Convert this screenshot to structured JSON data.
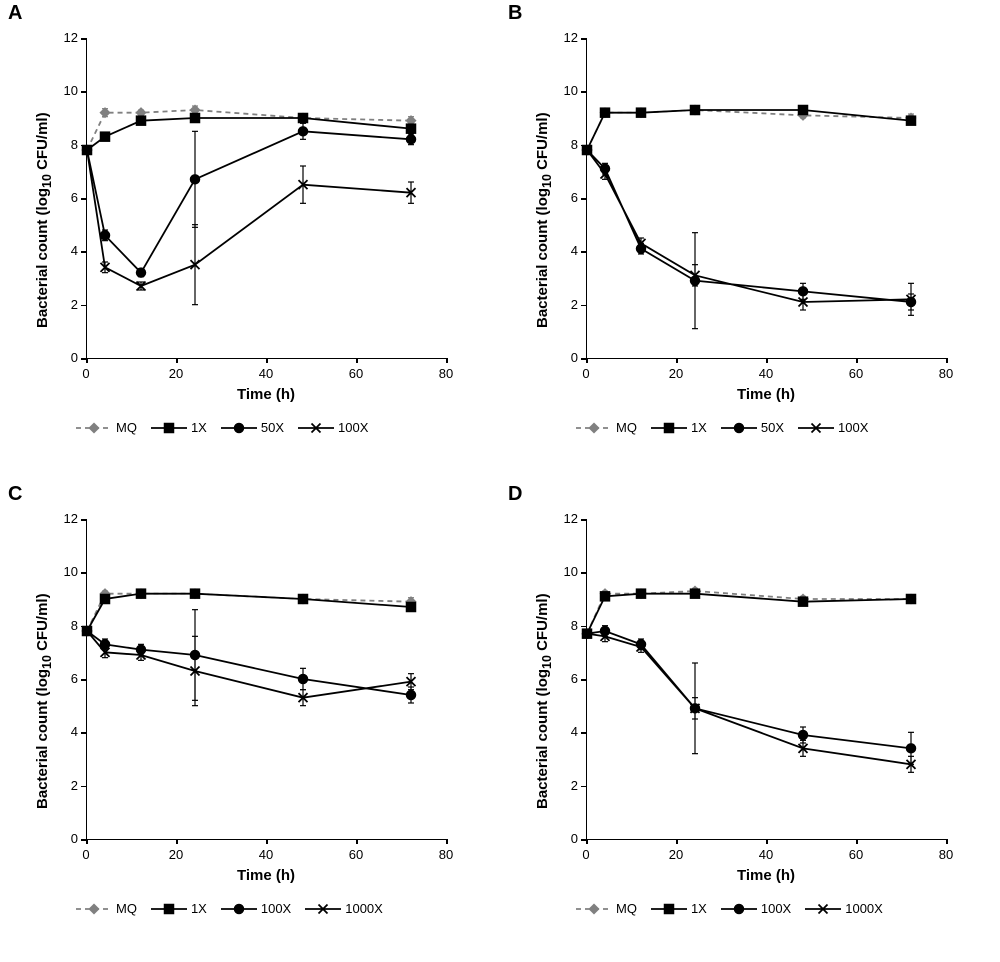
{
  "figure": {
    "background_color": "#ffffff",
    "font_family": "Arial, Helvetica, sans-serif",
    "panel_label_fontsize": 20,
    "axis_label_fontsize": 15,
    "tick_fontsize": 13,
    "legend_fontsize": 13,
    "line_width": 1.8,
    "marker_size": 6,
    "axis_color": "#000000",
    "colors": {
      "MQ": "#808080",
      "series": "#000000"
    },
    "grid_color": "#ffffff"
  },
  "panels": [
    {
      "id": "A",
      "label": "A",
      "type": "line",
      "xlabel": "Time (h)",
      "ylabel": "Bacterial count (log₁₀ CFU/ml)",
      "ylabel_plain": "Bacterial count (log10 CFU/ml)",
      "xlim": [
        0,
        80
      ],
      "ylim": [
        0,
        12
      ],
      "xticks": [
        0,
        20,
        40,
        60,
        80
      ],
      "yticks": [
        0,
        2,
        4,
        6,
        8,
        10,
        12
      ],
      "legend_items": [
        "MQ",
        "1X",
        "50X",
        "100X"
      ],
      "series": [
        {
          "name": "MQ",
          "marker": "diamond",
          "dash": "5,4",
          "color": "#808080",
          "x": [
            0,
            4,
            12,
            24,
            48,
            72
          ],
          "y": [
            7.8,
            9.2,
            9.2,
            9.3,
            9.0,
            8.9
          ],
          "err": [
            0.1,
            0.15,
            0.1,
            0.15,
            0.1,
            0.15
          ]
        },
        {
          "name": "1X",
          "marker": "square",
          "dash": "",
          "color": "#000000",
          "x": [
            0,
            4,
            12,
            24,
            48,
            72
          ],
          "y": [
            7.8,
            8.3,
            8.9,
            9.0,
            9.0,
            8.6
          ],
          "err": [
            0.1,
            0.1,
            0.1,
            0.1,
            0.15,
            0.1
          ]
        },
        {
          "name": "50X",
          "marker": "circle",
          "dash": "",
          "color": "#000000",
          "x": [
            0,
            4,
            12,
            24,
            48,
            72
          ],
          "y": [
            7.8,
            4.6,
            3.2,
            6.7,
            8.5,
            8.2
          ],
          "err": [
            0.1,
            0.2,
            0.15,
            1.8,
            0.3,
            0.2
          ]
        },
        {
          "name": "100X",
          "marker": "x",
          "dash": "",
          "color": "#000000",
          "x": [
            0,
            4,
            12,
            24,
            48,
            72
          ],
          "y": [
            7.8,
            3.4,
            2.7,
            3.5,
            6.5,
            6.2
          ],
          "err": [
            0.1,
            0.2,
            0.15,
            1.5,
            0.7,
            0.4
          ]
        }
      ]
    },
    {
      "id": "B",
      "label": "B",
      "type": "line",
      "xlabel": "Time (h)",
      "ylabel": "Bacterial count (log₁₀ CFU/ml)",
      "ylabel_plain": "Bacterial count (log10 CFU/ml)",
      "xlim": [
        0,
        80
      ],
      "ylim": [
        0,
        12
      ],
      "xticks": [
        0,
        20,
        40,
        60,
        80
      ],
      "yticks": [
        0,
        2,
        4,
        6,
        8,
        10,
        12
      ],
      "legend_items": [
        "MQ",
        "1X",
        "50X",
        "100X"
      ],
      "series": [
        {
          "name": "MQ",
          "marker": "diamond",
          "dash": "5,4",
          "color": "#808080",
          "x": [
            0,
            4,
            12,
            24,
            48,
            72
          ],
          "y": [
            7.8,
            9.2,
            9.2,
            9.3,
            9.1,
            9.0
          ],
          "err": [
            0.1,
            0.1,
            0.1,
            0.1,
            0.1,
            0.15
          ]
        },
        {
          "name": "1X",
          "marker": "square",
          "dash": "",
          "color": "#000000",
          "x": [
            0,
            4,
            12,
            24,
            48,
            72
          ],
          "y": [
            7.8,
            9.2,
            9.2,
            9.3,
            9.3,
            8.9
          ],
          "err": [
            0.1,
            0.1,
            0.1,
            0.1,
            0.15,
            0.1
          ]
        },
        {
          "name": "50X",
          "marker": "circle",
          "dash": "",
          "color": "#000000",
          "x": [
            0,
            4,
            12,
            24,
            48,
            72
          ],
          "y": [
            7.8,
            7.1,
            4.1,
            2.9,
            2.5,
            2.1
          ],
          "err": [
            0.1,
            0.2,
            0.2,
            1.8,
            0.3,
            0.3
          ]
        },
        {
          "name": "100X",
          "marker": "x",
          "dash": "",
          "color": "#000000",
          "x": [
            0,
            4,
            12,
            24,
            48,
            72
          ],
          "y": [
            7.8,
            6.9,
            4.3,
            3.1,
            2.1,
            2.2
          ],
          "err": [
            0.1,
            0.2,
            0.2,
            0.4,
            0.3,
            0.6
          ]
        }
      ]
    },
    {
      "id": "C",
      "label": "C",
      "type": "line",
      "xlabel": "Time (h)",
      "ylabel": "Bacterial count (log₁₀ CFU/ml)",
      "ylabel_plain": "Bacterial count (log10 CFU/ml)",
      "xlim": [
        0,
        80
      ],
      "ylim": [
        0,
        12
      ],
      "xticks": [
        0,
        20,
        40,
        60,
        80
      ],
      "yticks": [
        0,
        2,
        4,
        6,
        8,
        10,
        12
      ],
      "legend_items": [
        "MQ",
        "1X",
        "100X",
        "1000X"
      ],
      "series": [
        {
          "name": "MQ",
          "marker": "diamond",
          "dash": "5,4",
          "color": "#808080",
          "x": [
            0,
            4,
            12,
            24,
            48,
            72
          ],
          "y": [
            7.8,
            9.2,
            9.2,
            9.2,
            9.0,
            8.9
          ],
          "err": [
            0.1,
            0.1,
            0.1,
            0.1,
            0.1,
            0.15
          ]
        },
        {
          "name": "1X",
          "marker": "square",
          "dash": "",
          "color": "#000000",
          "x": [
            0,
            4,
            12,
            24,
            48,
            72
          ],
          "y": [
            7.8,
            9.0,
            9.2,
            9.2,
            9.0,
            8.7
          ],
          "err": [
            0.1,
            0.1,
            0.1,
            0.1,
            0.1,
            0.15
          ]
        },
        {
          "name": "100X",
          "marker": "circle",
          "dash": "",
          "color": "#000000",
          "x": [
            0,
            4,
            12,
            24,
            48,
            72
          ],
          "y": [
            7.8,
            7.3,
            7.1,
            6.9,
            6.0,
            5.4
          ],
          "err": [
            0.1,
            0.2,
            0.2,
            1.7,
            0.4,
            0.3
          ]
        },
        {
          "name": "1000X",
          "marker": "x",
          "dash": "",
          "color": "#000000",
          "x": [
            0,
            4,
            12,
            24,
            48,
            72
          ],
          "y": [
            7.8,
            7.0,
            6.9,
            6.3,
            5.3,
            5.9
          ],
          "err": [
            0.1,
            0.2,
            0.2,
            1.3,
            0.3,
            0.3
          ]
        }
      ]
    },
    {
      "id": "D",
      "label": "D",
      "type": "line",
      "xlabel": "Time (h)",
      "ylabel": "Bacterial count (log₁₀ CFU/ml)",
      "ylabel_plain": "Bacterial count (log10 CFU/ml)",
      "xlim": [
        0,
        80
      ],
      "ylim": [
        0,
        12
      ],
      "xticks": [
        0,
        20,
        40,
        60,
        80
      ],
      "yticks": [
        0,
        2,
        4,
        6,
        8,
        10,
        12
      ],
      "legend_items": [
        "MQ",
        "1X",
        "100X",
        "1000X"
      ],
      "series": [
        {
          "name": "MQ",
          "marker": "diamond",
          "dash": "5,4",
          "color": "#808080",
          "x": [
            0,
            4,
            12,
            24,
            48,
            72
          ],
          "y": [
            7.7,
            9.2,
            9.2,
            9.3,
            9.0,
            9.0
          ],
          "err": [
            0.1,
            0.1,
            0.1,
            0.1,
            0.1,
            0.15
          ]
        },
        {
          "name": "1X",
          "marker": "square",
          "dash": "",
          "color": "#000000",
          "x": [
            0,
            4,
            12,
            24,
            48,
            72
          ],
          "y": [
            7.7,
            9.1,
            9.2,
            9.2,
            8.9,
            9.0
          ],
          "err": [
            0.1,
            0.1,
            0.1,
            0.1,
            0.15,
            0.1
          ]
        },
        {
          "name": "100X",
          "marker": "circle",
          "dash": "",
          "color": "#000000",
          "x": [
            0,
            4,
            12,
            24,
            48,
            72
          ],
          "y": [
            7.7,
            7.8,
            7.3,
            4.9,
            3.9,
            3.4
          ],
          "err": [
            0.1,
            0.2,
            0.2,
            1.7,
            0.3,
            0.6
          ]
        },
        {
          "name": "1000X",
          "marker": "x",
          "dash": "",
          "color": "#000000",
          "x": [
            0,
            4,
            12,
            24,
            48,
            72
          ],
          "y": [
            7.7,
            7.6,
            7.2,
            4.9,
            3.4,
            2.8
          ],
          "err": [
            0.1,
            0.2,
            0.2,
            0.4,
            0.3,
            0.3
          ]
        }
      ]
    }
  ]
}
